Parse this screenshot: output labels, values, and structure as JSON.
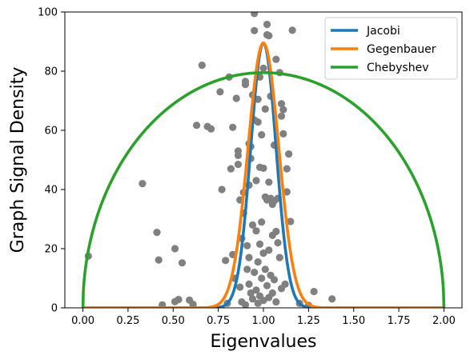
{
  "chart_data": {
    "type": "scatter",
    "title": "",
    "xlabel": "Eigenvalues",
    "ylabel": "Graph Signal Density",
    "xlim": [
      -0.1,
      2.1
    ],
    "ylim": [
      0,
      100
    ],
    "x_ticks": [
      0.0,
      0.25,
      0.5,
      0.75,
      1.0,
      1.25,
      1.5,
      1.75,
      2.0
    ],
    "x_tick_labels": [
      "0.00",
      "0.25",
      "0.50",
      "0.75",
      "1.00",
      "1.25",
      "1.50",
      "1.75",
      "2.00"
    ],
    "y_ticks": [
      0,
      20,
      40,
      60,
      80,
      100
    ],
    "y_tick_labels": [
      "0",
      "20",
      "40",
      "60",
      "80",
      "100"
    ],
    "grid": false,
    "legend_position": "top-right",
    "scatter_color": "#808080",
    "scatter_points": [
      [
        0.03,
        17.5
      ],
      [
        0.33,
        42
      ],
      [
        0.41,
        25.5
      ],
      [
        0.42,
        16.2
      ],
      [
        0.44,
        1
      ],
      [
        0.51,
        20
      ],
      [
        0.51,
        2.1
      ],
      [
        0.53,
        2.8
      ],
      [
        0.55,
        15.2
      ],
      [
        0.59,
        2.6
      ],
      [
        0.61,
        1.2
      ],
      [
        0.63,
        61.7
      ],
      [
        0.66,
        82
      ],
      [
        0.69,
        61.3
      ],
      [
        0.71,
        60.5
      ],
      [
        0.76,
        73
      ],
      [
        0.77,
        40
      ],
      [
        0.79,
        16
      ],
      [
        0.8,
        1.5
      ],
      [
        0.81,
        78
      ],
      [
        0.82,
        47
      ],
      [
        0.83,
        61
      ],
      [
        0.83,
        18
      ],
      [
        0.84,
        10
      ],
      [
        0.85,
        70.8
      ],
      [
        0.86,
        53
      ],
      [
        0.86,
        51.5
      ],
      [
        0.86,
        48.5
      ],
      [
        0.87,
        7
      ],
      [
        0.87,
        36.5
      ],
      [
        0.88,
        23.5
      ],
      [
        0.88,
        2
      ],
      [
        0.89,
        32
      ],
      [
        0.89,
        39
      ],
      [
        0.9,
        76.5
      ],
      [
        0.9,
        75.5
      ],
      [
        0.9,
        1
      ],
      [
        0.91,
        21
      ],
      [
        0.91,
        13
      ],
      [
        0.92,
        55.5
      ],
      [
        0.92,
        41.5
      ],
      [
        0.92,
        17
      ],
      [
        0.92,
        8
      ],
      [
        0.93,
        54.5
      ],
      [
        0.93,
        50.5
      ],
      [
        0.93,
        5
      ],
      [
        0.94,
        72
      ],
      [
        0.94,
        28
      ],
      [
        0.94,
        3
      ],
      [
        0.95,
        99.5
      ],
      [
        0.95,
        93.7
      ],
      [
        0.95,
        63.5
      ],
      [
        0.95,
        12
      ],
      [
        0.96,
        43
      ],
      [
        0.96,
        26
      ],
      [
        0.96,
        6
      ],
      [
        0.97,
        70.5
      ],
      [
        0.97,
        62.8
      ],
      [
        0.97,
        15.5
      ],
      [
        0.97,
        1.5
      ],
      [
        0.98,
        78
      ],
      [
        0.98,
        47.5
      ],
      [
        0.98,
        21.5
      ],
      [
        0.98,
        4
      ],
      [
        0.99,
        58.5
      ],
      [
        0.99,
        29
      ],
      [
        0.99,
        10
      ],
      [
        1.0,
        81
      ],
      [
        1.0,
        47.2
      ],
      [
        1.0,
        18.5
      ],
      [
        1.0,
        2.5
      ],
      [
        1.01,
        67.2
      ],
      [
        1.01,
        37.5
      ],
      [
        1.01,
        13
      ],
      [
        1.02,
        95.8
      ],
      [
        1.02,
        92.3
      ],
      [
        1.02,
        36.5
      ],
      [
        1.02,
        7.5
      ],
      [
        1.03,
        92
      ],
      [
        1.03,
        42.5
      ],
      [
        1.03,
        19.5
      ],
      [
        1.03,
        3.5
      ],
      [
        1.04,
        71.5
      ],
      [
        1.04,
        37
      ],
      [
        1.04,
        11
      ],
      [
        1.05,
        35
      ],
      [
        1.05,
        24.5
      ],
      [
        1.05,
        5
      ],
      [
        1.06,
        55
      ],
      [
        1.06,
        36.2
      ],
      [
        1.06,
        9.5
      ],
      [
        1.07,
        84
      ],
      [
        1.07,
        25.8
      ],
      [
        1.07,
        2
      ],
      [
        1.08,
        37
      ],
      [
        1.08,
        22
      ],
      [
        1.09,
        79.5
      ],
      [
        1.09,
        17
      ],
      [
        1.1,
        69
      ],
      [
        1.1,
        64.8
      ],
      [
        1.1,
        6.5
      ],
      [
        1.11,
        67
      ],
      [
        1.11,
        58.8
      ],
      [
        1.12,
        8
      ],
      [
        1.13,
        47
      ],
      [
        1.13,
        39.2
      ],
      [
        1.14,
        52
      ],
      [
        1.15,
        29.2
      ],
      [
        1.16,
        93.8
      ],
      [
        1.2,
        1.5
      ],
      [
        1.25,
        0.8
      ],
      [
        1.28,
        5.5
      ],
      [
        1.38,
        3
      ]
    ],
    "series": [
      {
        "name": "Jacobi",
        "color": "#1f77b4",
        "function": "gaussian",
        "center": 1.0,
        "peak": 89.5,
        "sigma": 0.07
      },
      {
        "name": "Gegenbauer",
        "color": "#ff7f0e",
        "function": "gaussian",
        "center": 1.0,
        "peak": 89.5,
        "sigma": 0.085
      },
      {
        "name": "Chebyshev",
        "color": "#2ca02c",
        "function": "semicircle",
        "center": 1.0,
        "peak": 79.5,
        "radius": 1.0
      }
    ]
  }
}
